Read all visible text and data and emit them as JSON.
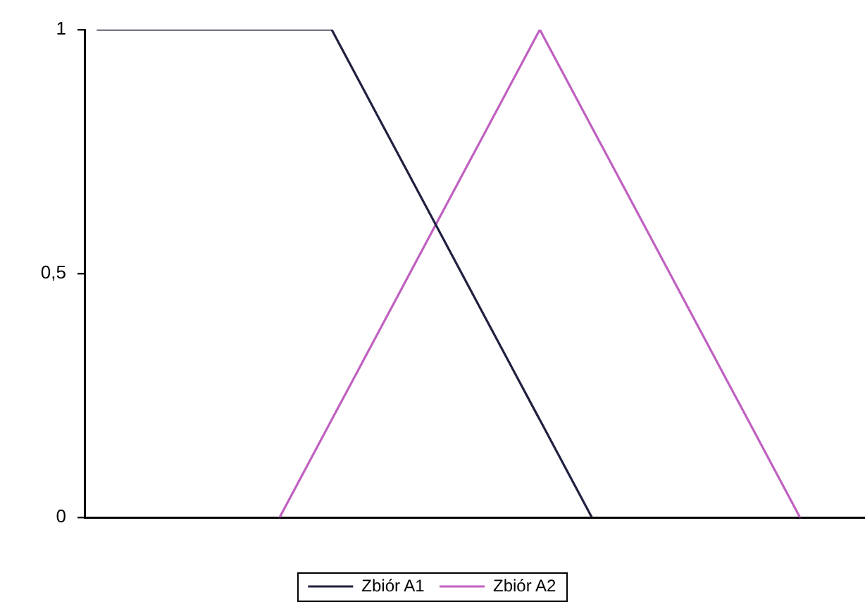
{
  "chart_data": {
    "type": "line",
    "categories": [
      null,
      null,
      null,
      null,
      null,
      null,
      null,
      null,
      null,
      null,
      null,
      null,
      null,
      null,
      null,
      null,
      null,
      null,
      null,
      null,
      null,
      null,
      null,
      null,
      null,
      null,
      null,
      null,
      null,
      null
    ],
    "series": [
      {
        "name": "Zbiór A1",
        "color": "#202040",
        "values": [
          1,
          1,
          1,
          1,
          1,
          1,
          1,
          1,
          1,
          1,
          0.9,
          0.8,
          0.7,
          0.6,
          0.5,
          0.4,
          0.3,
          0.2,
          0.1,
          0,
          null,
          null,
          null,
          null,
          null,
          null,
          null,
          null,
          null,
          null
        ]
      },
      {
        "name": "Zbiór A2",
        "color": "#c060c0",
        "values": [
          null,
          null,
          null,
          null,
          null,
          null,
          null,
          0,
          0.1,
          0.2,
          0.3,
          0.4,
          0.5,
          0.6,
          0.7,
          0.8,
          0.9,
          1,
          0.9,
          0.8,
          0.7,
          0.6,
          0.5,
          0.4,
          0.3,
          0.2,
          0.1,
          0,
          null,
          null
        ]
      }
    ],
    "ylim": [
      0,
      1
    ],
    "yticks": [
      0,
      {
        "value": 0.5,
        "label": "0,5"
      },
      1
    ],
    "grid": false,
    "legend": "bottom",
    "tick_labels": "y"
  }
}
